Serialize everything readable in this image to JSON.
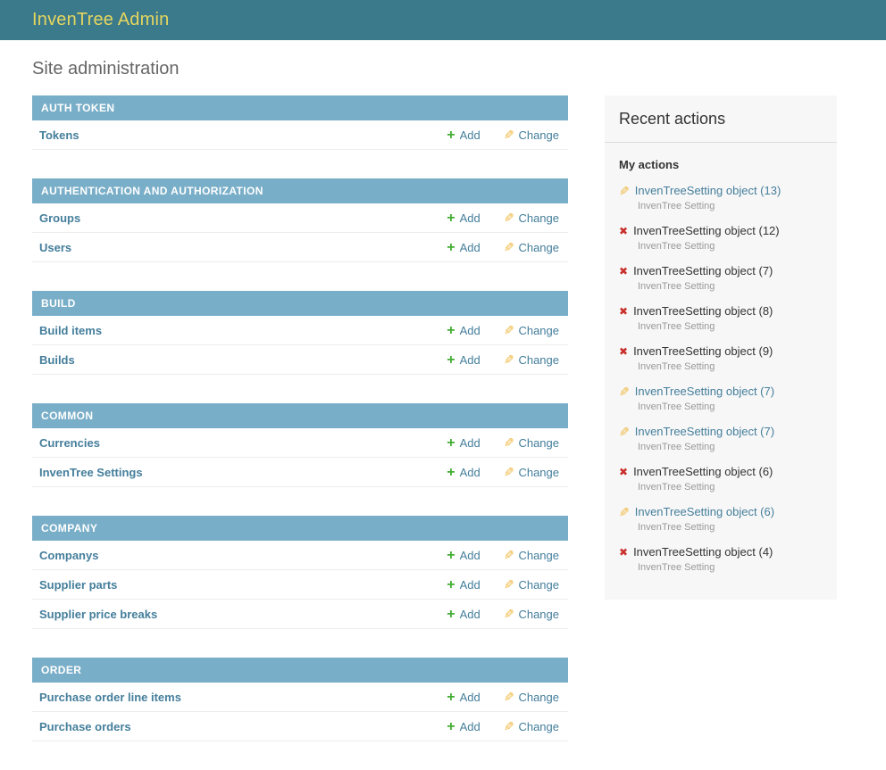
{
  "header": {
    "title": "InvenTree Admin"
  },
  "page_title": "Site administration",
  "colors": {
    "header_bg": "#3b7a8b",
    "brand_text": "#e5d65f",
    "caption_bg": "#79aec8",
    "link": "#447e9b",
    "add_green": "#44ad34",
    "change_amber": "#efb73e",
    "delete_red": "#c9302c",
    "panel_bg": "#f7f7f7"
  },
  "icons": {
    "add": "+",
    "change": "✎",
    "delete": "✖"
  },
  "actions": {
    "add_label": "Add",
    "change_label": "Change"
  },
  "modules": [
    {
      "caption": "AUTH TOKEN",
      "rows": [
        {
          "label": "Tokens"
        }
      ]
    },
    {
      "caption": "AUTHENTICATION AND AUTHORIZATION",
      "rows": [
        {
          "label": "Groups"
        },
        {
          "label": "Users"
        }
      ]
    },
    {
      "caption": "BUILD",
      "rows": [
        {
          "label": "Build items"
        },
        {
          "label": "Builds"
        }
      ]
    },
    {
      "caption": "COMMON",
      "rows": [
        {
          "label": "Currencies"
        },
        {
          "label": "InvenTree Settings"
        }
      ]
    },
    {
      "caption": "COMPANY",
      "rows": [
        {
          "label": "Companys"
        },
        {
          "label": "Supplier parts"
        },
        {
          "label": "Supplier price breaks"
        }
      ]
    },
    {
      "caption": "ORDER",
      "rows": [
        {
          "label": "Purchase order line items"
        },
        {
          "label": "Purchase orders"
        }
      ]
    }
  ],
  "sidebar": {
    "title": "Recent actions",
    "group_heading": "My actions",
    "items": [
      {
        "icon": "change",
        "label": "InvenTreeSetting object (13)",
        "object_type": "InvenTree Setting",
        "is_link": true
      },
      {
        "icon": "delete",
        "label": "InvenTreeSetting object (12)",
        "object_type": "InvenTree Setting",
        "is_link": false
      },
      {
        "icon": "delete",
        "label": "InvenTreeSetting object (7)",
        "object_type": "InvenTree Setting",
        "is_link": false
      },
      {
        "icon": "delete",
        "label": "InvenTreeSetting object (8)",
        "object_type": "InvenTree Setting",
        "is_link": false
      },
      {
        "icon": "delete",
        "label": "InvenTreeSetting object (9)",
        "object_type": "InvenTree Setting",
        "is_link": false
      },
      {
        "icon": "change",
        "label": "InvenTreeSetting object (7)",
        "object_type": "InvenTree Setting",
        "is_link": true
      },
      {
        "icon": "change",
        "label": "InvenTreeSetting object (7)",
        "object_type": "InvenTree Setting",
        "is_link": true
      },
      {
        "icon": "delete",
        "label": "InvenTreeSetting object (6)",
        "object_type": "InvenTree Setting",
        "is_link": false
      },
      {
        "icon": "change",
        "label": "InvenTreeSetting object (6)",
        "object_type": "InvenTree Setting",
        "is_link": true
      },
      {
        "icon": "delete",
        "label": "InvenTreeSetting object (4)",
        "object_type": "InvenTree Setting",
        "is_link": false
      }
    ]
  }
}
